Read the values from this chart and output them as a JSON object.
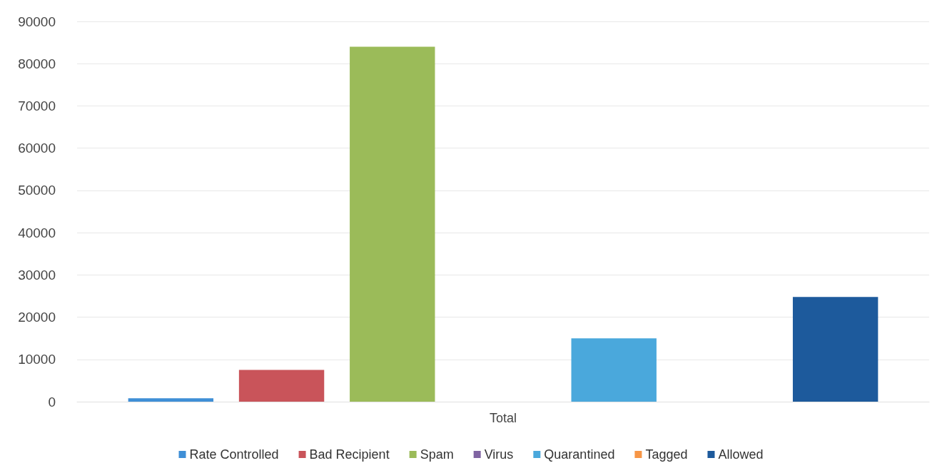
{
  "chart_data": {
    "type": "bar",
    "categories": [
      "Total"
    ],
    "series": [
      {
        "name": "Rate Controlled",
        "color": "#3f8fd6",
        "values": [
          800
        ]
      },
      {
        "name": "Bad Recipient",
        "color": "#c9545a",
        "values": [
          7500
        ]
      },
      {
        "name": "Spam",
        "color": "#9bbb59",
        "values": [
          84000
        ]
      },
      {
        "name": "Virus",
        "color": "#8064a2",
        "values": [
          0
        ]
      },
      {
        "name": "Quarantined",
        "color": "#4aa8dc",
        "values": [
          15000
        ]
      },
      {
        "name": "Tagged",
        "color": "#f79646",
        "values": [
          0
        ]
      },
      {
        "name": "Allowed",
        "color": "#1d5a9c",
        "values": [
          24800
        ]
      }
    ],
    "ylim": [
      0,
      90000
    ],
    "yticks": [
      0,
      10000,
      20000,
      30000,
      40000,
      50000,
      60000,
      70000,
      80000,
      90000
    ],
    "grid": "y",
    "legend": "bottom"
  }
}
